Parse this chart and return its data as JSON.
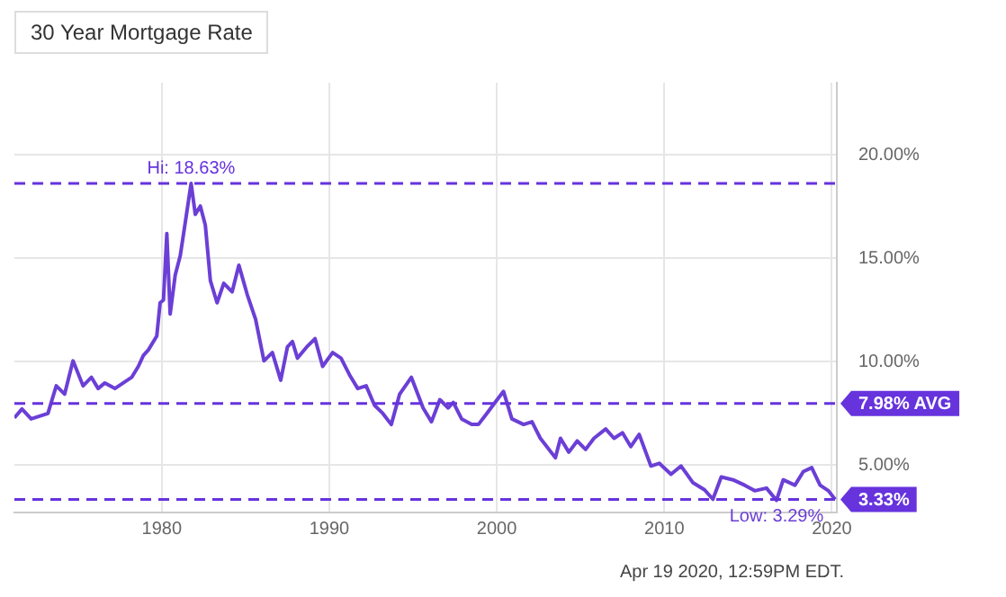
{
  "chart_data": {
    "type": "line",
    "title": "30 Year Mortgage Rate",
    "x": [
      1971.2,
      1971.65,
      1972.2,
      1973.2,
      1973.7,
      1974.2,
      1974.7,
      1975.3,
      1975.8,
      1976.2,
      1976.6,
      1977.2,
      1977.7,
      1978.2,
      1978.6,
      1978.9,
      1979.2,
      1979.7,
      1979.9,
      1980.1,
      1980.3,
      1980.5,
      1980.8,
      1981.1,
      1981.4,
      1981.75,
      1982.0,
      1982.3,
      1982.6,
      1982.9,
      1983.3,
      1983.7,
      1984.2,
      1984.6,
      1985.1,
      1985.6,
      1986.1,
      1986.6,
      1987.1,
      1987.5,
      1987.8,
      1988.1,
      1988.65,
      1989.15,
      1989.6,
      1990.2,
      1990.7,
      1991.2,
      1991.7,
      1992.2,
      1992.7,
      1993.2,
      1993.7,
      1994.2,
      1994.9,
      1995.6,
      1996.1,
      1996.6,
      1997.1,
      1997.4,
      1997.9,
      1998.5,
      1998.9,
      1999.4,
      1999.9,
      2000.4,
      2000.9,
      2001.6,
      2002.1,
      2002.6,
      2003.5,
      2003.8,
      2004.3,
      2004.8,
      2005.3,
      2005.8,
      2006.5,
      2007.0,
      2007.5,
      2008.0,
      2008.5,
      2009.2,
      2009.7,
      2010.4,
      2011.0,
      2011.7,
      2012.4,
      2012.9,
      2013.4,
      2014.1,
      2014.8,
      2015.4,
      2016.1,
      2016.7,
      2017.1,
      2017.8,
      2018.3,
      2018.8,
      2019.3,
      2019.8,
      2020.2
    ],
    "series": [
      {
        "color": "#6b3fd6",
        "values": [
          7.28,
          7.71,
          7.23,
          7.49,
          8.83,
          8.43,
          10.04,
          8.83,
          9.24,
          8.7,
          8.97,
          8.7,
          8.97,
          9.24,
          9.77,
          10.3,
          10.57,
          11.24,
          12.85,
          12.98,
          16.2,
          12.31,
          14.19,
          15.12,
          16.73,
          18.63,
          17.13,
          17.53,
          16.6,
          13.92,
          12.85,
          13.79,
          13.38,
          14.67,
          13.25,
          12.05,
          10.04,
          10.44,
          9.1,
          10.71,
          10.97,
          10.17,
          10.71,
          11.11,
          9.77,
          10.44,
          10.17,
          9.37,
          8.7,
          8.83,
          7.89,
          7.49,
          6.96,
          8.43,
          9.24,
          7.76,
          7.09,
          8.16,
          7.76,
          8.03,
          7.23,
          6.96,
          6.96,
          7.49,
          8.03,
          8.56,
          7.23,
          6.96,
          7.09,
          6.29,
          5.35,
          6.29,
          5.62,
          6.16,
          5.75,
          6.29,
          6.74,
          6.29,
          6.56,
          5.89,
          6.48,
          4.95,
          5.08,
          4.55,
          4.95,
          4.15,
          3.8,
          3.34,
          4.42,
          4.28,
          4.02,
          3.75,
          3.88,
          3.29,
          4.28,
          4.02,
          4.68,
          4.87,
          4.02,
          3.75,
          3.33
        ]
      }
    ],
    "xlim": [
      1971.2,
      2020.3
    ],
    "xticks": [
      1980,
      1990,
      2000,
      2010,
      2020
    ],
    "ylim": [
      2.7,
      23.5
    ],
    "yticks": [
      {
        "value": 5,
        "label": "5.00%"
      },
      {
        "value": 10,
        "label": "10.00%"
      },
      {
        "value": 15,
        "label": "15.00%"
      },
      {
        "value": 20,
        "label": "20.00%"
      }
    ],
    "grid": true,
    "marker": "none",
    "line_style": "solid",
    "ref_lines": [
      {
        "axis": "y",
        "value": 18.63,
        "label": "Hi: 18.63%",
        "color": "#6633dd",
        "line_style": "dashed"
      },
      {
        "axis": "y",
        "value": 7.98,
        "label": "7.98% AVG",
        "color": "#6633dd",
        "line_style": "dashed"
      },
      {
        "axis": "y",
        "value": 3.33,
        "label": "3.33%",
        "color": "#6633dd",
        "line_style": "dashed"
      }
    ],
    "annotations": [
      {
        "text": "Low: 3.29%",
        "x": 2016.7,
        "y": 3.29
      },
      "Apr 19 2020, 12:59PM EDT."
    ]
  }
}
